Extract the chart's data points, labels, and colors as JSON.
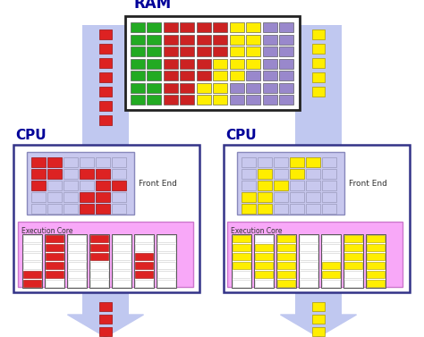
{
  "bg_color": "#ffffff",
  "ram_title": "RAM",
  "cpu_title": "CPU",
  "ram_grid_colors": [
    [
      "#22aa22",
      "#22aa22",
      "#cc2222",
      "#cc2222",
      "#cc2222",
      "#cc2222",
      "#ffee00",
      "#ffee00",
      "#9988cc",
      "#9988cc"
    ],
    [
      "#22aa22",
      "#22aa22",
      "#cc2222",
      "#cc2222",
      "#cc2222",
      "#cc2222",
      "#ffee00",
      "#ffee00",
      "#9988cc",
      "#9988cc"
    ],
    [
      "#22aa22",
      "#22aa22",
      "#cc2222",
      "#cc2222",
      "#cc2222",
      "#cc2222",
      "#ffee00",
      "#ffee00",
      "#9988cc",
      "#9988cc"
    ],
    [
      "#22aa22",
      "#22aa22",
      "#cc2222",
      "#cc2222",
      "#cc2222",
      "#ffee00",
      "#ffee00",
      "#ffee00",
      "#9988cc",
      "#9988cc"
    ],
    [
      "#22aa22",
      "#22aa22",
      "#cc2222",
      "#cc2222",
      "#cc2222",
      "#ffee00",
      "#ffee00",
      "#9988cc",
      "#9988cc",
      "#9988cc"
    ],
    [
      "#22aa22",
      "#22aa22",
      "#cc2222",
      "#cc2222",
      "#ffee00",
      "#ffee00",
      "#9988cc",
      "#9988cc",
      "#9988cc",
      "#9988cc"
    ],
    [
      "#22aa22",
      "#22aa22",
      "#cc2222",
      "#cc2222",
      "#ffee00",
      "#ffee00",
      "#9988cc",
      "#9988cc",
      "#9988cc",
      "#9988cc"
    ]
  ],
  "front_end_label": "Front End",
  "exec_core_label": "Execution Core",
  "cpu1_front_end_pattern": [
    [
      1,
      1,
      0,
      0,
      0,
      0
    ],
    [
      1,
      1,
      0,
      1,
      1,
      0
    ],
    [
      1,
      0,
      0,
      0,
      1,
      1
    ],
    [
      0,
      0,
      0,
      1,
      1,
      0
    ],
    [
      0,
      0,
      0,
      1,
      1,
      0
    ]
  ],
  "cpu2_front_end_pattern": [
    [
      0,
      0,
      0,
      1,
      1,
      0
    ],
    [
      0,
      1,
      0,
      1,
      0,
      0
    ],
    [
      0,
      1,
      1,
      0,
      0,
      0
    ],
    [
      1,
      1,
      0,
      0,
      0,
      0
    ],
    [
      1,
      1,
      0,
      0,
      0,
      0
    ]
  ],
  "cpu1_exec_pattern": [
    [
      0,
      1,
      0,
      1,
      0,
      0,
      0
    ],
    [
      0,
      1,
      0,
      1,
      0,
      0,
      0
    ],
    [
      0,
      1,
      0,
      1,
      0,
      1,
      0
    ],
    [
      0,
      1,
      0,
      0,
      0,
      1,
      0
    ],
    [
      1,
      1,
      0,
      0,
      0,
      1,
      0
    ],
    [
      1,
      0,
      0,
      0,
      0,
      0,
      0
    ]
  ],
  "cpu2_exec_pattern": [
    [
      1,
      0,
      1,
      0,
      0,
      1,
      1
    ],
    [
      1,
      1,
      1,
      0,
      0,
      1,
      1
    ],
    [
      1,
      1,
      1,
      0,
      0,
      1,
      1
    ],
    [
      1,
      1,
      1,
      0,
      1,
      1,
      1
    ],
    [
      0,
      1,
      1,
      0,
      1,
      0,
      1
    ],
    [
      0,
      0,
      1,
      0,
      0,
      0,
      1
    ]
  ],
  "red": "#dd2222",
  "yellow": "#ffee00",
  "purple": "#9988cc",
  "pink_bg": "#f8a8f8",
  "lavender": "#c8c8ee",
  "arrow_lavender": "#c0c8f0",
  "cpu_border": "#333388",
  "ram_border": "#222222",
  "green": "#22aa22"
}
